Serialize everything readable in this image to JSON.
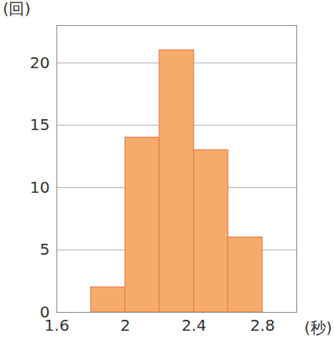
{
  "chart_data": {
    "type": "histogram",
    "bins": [
      1.8,
      2.0,
      2.2,
      2.4,
      2.6,
      2.8
    ],
    "values": [
      2,
      14,
      21,
      13,
      6
    ],
    "color": "#f5ab6a",
    "x_label": "(秒)",
    "y_label": "(回)",
    "xlim": [
      1.6,
      3.0
    ],
    "xticks": [
      1.6,
      2.0,
      2.4,
      2.8
    ],
    "ylim": [
      0,
      23
    ],
    "yticks": [
      0,
      5,
      10,
      15,
      20
    ],
    "grid": true
  }
}
